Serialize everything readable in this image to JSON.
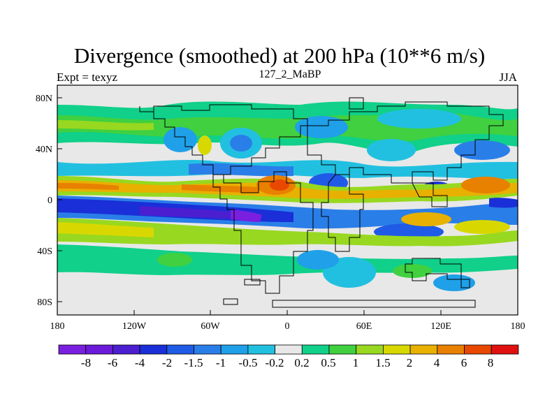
{
  "title": "Divergence (smoothed) at 200 hPa (10**6 m/s)",
  "subtitle_left": "Expt = texyz",
  "subtitle_center": "127_2_MaBP",
  "subtitle_right": "JJA",
  "x_ticks": [
    "180",
    "120W",
    "60W",
    "0",
    "60E",
    "120E",
    "180"
  ],
  "y_ticks": [
    "80N",
    "40N",
    "0",
    "40S",
    "80S"
  ],
  "colorbar": {
    "labels": [
      "-8",
      "-6",
      "-4",
      "-2",
      "-1.5",
      "-1",
      "-0.5",
      "-0.2",
      "0.2",
      "0.5",
      "1",
      "1.5",
      "2",
      "4",
      "6",
      "8"
    ],
    "colors": [
      "#7a1fe0",
      "#6a1ad8",
      "#4b1fd0",
      "#1a2fd8",
      "#1f5be6",
      "#2a7ee8",
      "#1fa0e8",
      "#22c0e0",
      "#e8e8e8",
      "#10d08a",
      "#40d040",
      "#98d820",
      "#d8d800",
      "#e8b000",
      "#e88000",
      "#e84800",
      "#e01010"
    ]
  },
  "colors": {
    "background_field": "#e8e8e8",
    "coastline": "#000000"
  }
}
